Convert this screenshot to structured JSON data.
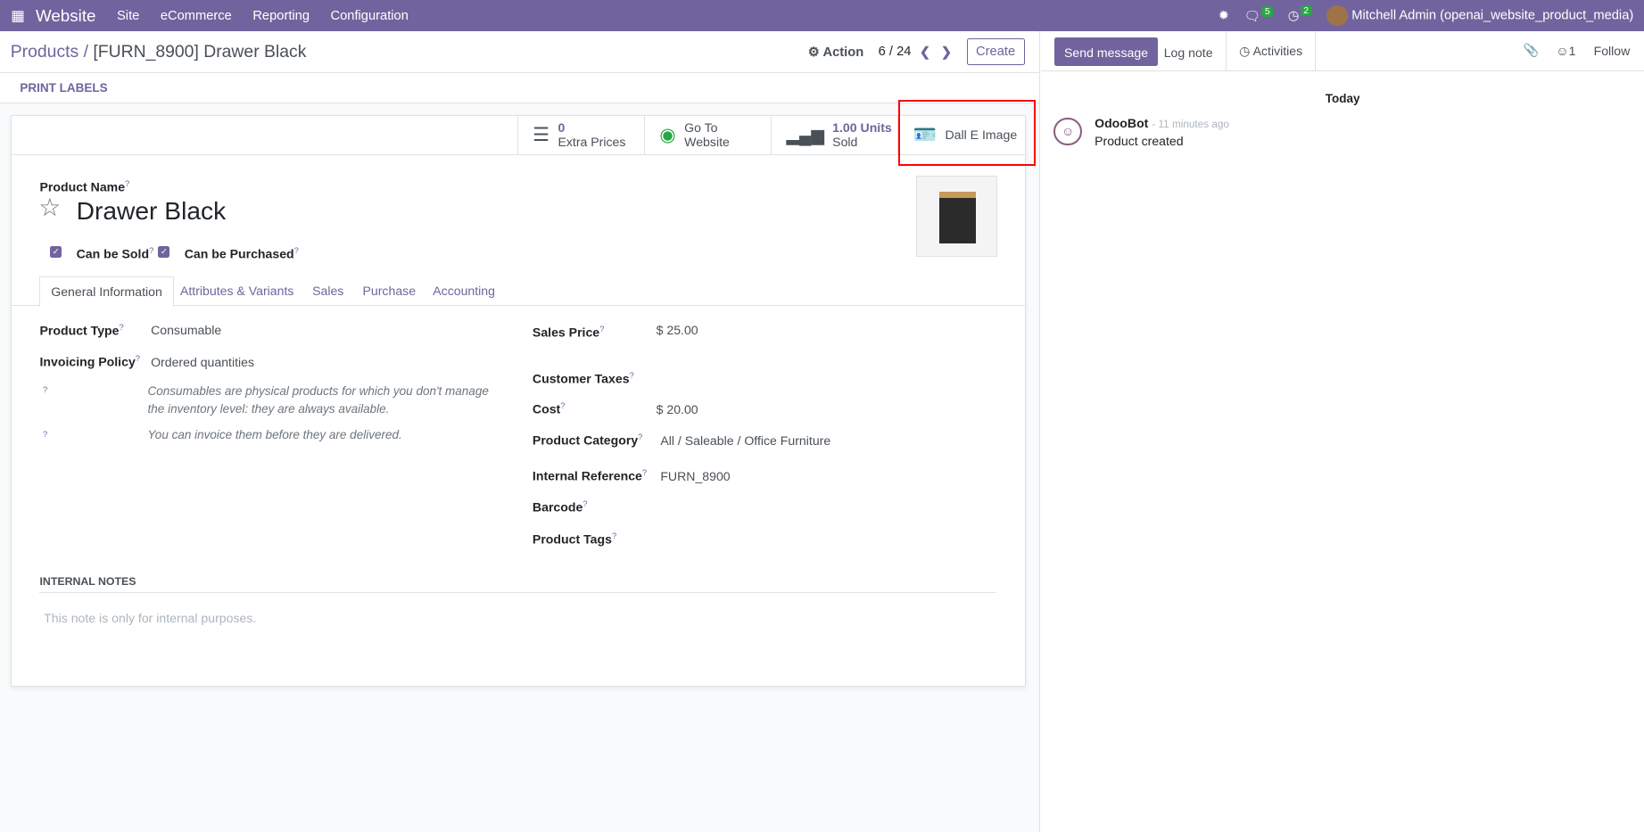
{
  "nav": {
    "apps_icon": "grid-icon",
    "brand": "Website",
    "menus": [
      "Site",
      "eCommerce",
      "Reporting",
      "Configuration"
    ],
    "messages_count": "5",
    "activities_count": "2",
    "user": "Mitchell Admin (openai_website_product_media)"
  },
  "control_panel": {
    "breadcrumb_root": "Products",
    "breadcrumb_current": "[FURN_8900] Drawer Black",
    "action": "Action",
    "pager": "6 / 24",
    "create": "Create",
    "print_labels": "PRINT LABELS"
  },
  "smart_buttons": [
    {
      "value": "0",
      "label": "Extra Prices",
      "icon": "list-icon"
    },
    {
      "value": "Go To",
      "label": "Website",
      "icon": "globe-icon"
    },
    {
      "value": "1.00 Units",
      "label": "Sold",
      "icon": "bar-chart-icon"
    },
    {
      "value": "",
      "label": "Dall E Image",
      "icon": "id-card-icon"
    }
  ],
  "form": {
    "product_name_label": "Product Name",
    "product_name": "Drawer Black",
    "can_be_sold": "Can be Sold",
    "can_be_purchased": "Can be Purchased",
    "tabs": [
      "General Information",
      "Attributes & Variants",
      "Sales",
      "Purchase",
      "Accounting"
    ],
    "product_type_label": "Product Type",
    "product_type": "Consumable",
    "invoicing_policy_label": "Invoicing Policy",
    "invoicing_policy": "Ordered quantities",
    "hint1": "Consumables are physical products for which you don't manage the inventory level: they are always available.",
    "hint2": "You can invoice them before they are delivered.",
    "sales_price_label": "Sales Price",
    "sales_price": "$ 25.00",
    "customer_taxes_label": "Customer Taxes",
    "cost_label": "Cost",
    "cost": "$ 20.00",
    "category_label": "Product Category",
    "category": "All / Saleable / Office Furniture",
    "internal_ref_label": "Internal Reference",
    "internal_ref": "FURN_8900",
    "barcode_label": "Barcode",
    "tags_label": "Product Tags",
    "internal_notes": "INTERNAL NOTES",
    "notes_placeholder": "This note is only for internal purposes."
  },
  "chatter": {
    "send_message": "Send message",
    "log_note": "Log note",
    "activities": "Activities",
    "followers": "1",
    "follow": "Follow",
    "today": "Today",
    "author": "OdooBot",
    "time": "- 11 minutes ago",
    "message": "Product created"
  },
  "colors": {
    "brand": "#71639e",
    "highlight": "#ff0000"
  }
}
